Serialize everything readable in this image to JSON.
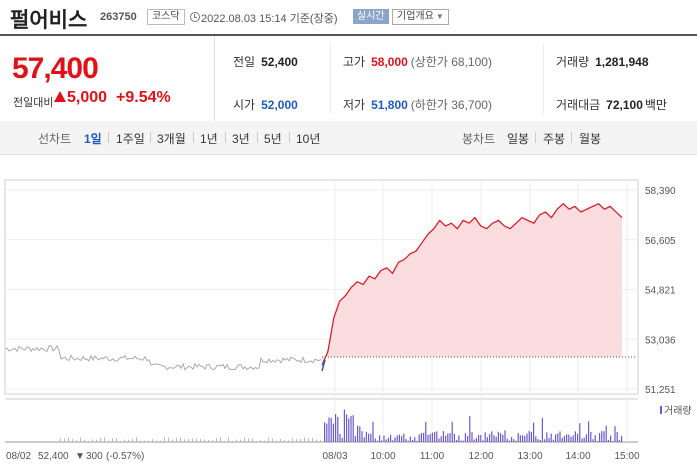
{
  "header": {
    "name": "펄어비스",
    "code": "263750",
    "market": "코스닥",
    "asof": "2022.08.03 15:14 기준(장중)",
    "realtime_label": "실시간",
    "info_label": "기업개요"
  },
  "quote": {
    "price": "57,400",
    "change_label": "전일대비",
    "change": "5,000",
    "change_pct": "+9.54%"
  },
  "stats": {
    "prev_label": "전일",
    "prev": "52,400",
    "high_label": "고가",
    "high": "58,000",
    "high_note": "(상한가 68,100)",
    "volume_label": "거래량",
    "volume": "1,281,948",
    "open_label": "시가",
    "open": "52,000",
    "low_label": "저가",
    "low": "51,800",
    "low_note": "(하한가 36,700)",
    "amount_label": "거래대금",
    "amount": "72,100",
    "amount_unit": "백만"
  },
  "tabs": {
    "line_label": "선차트",
    "line": [
      "1일",
      "1주일",
      "3개월",
      "1년",
      "3년",
      "5년",
      "10년"
    ],
    "candle_label": "봉차트",
    "candle": [
      "일봉",
      "주봉",
      "월봉"
    ]
  },
  "chart_data": {
    "type": "line",
    "y_ticks": [
      "58,390",
      "56,605",
      "54,821",
      "53,036",
      "51,251"
    ],
    "ylim": [
      51251,
      58390
    ],
    "x_ticks": [
      "08/03",
      "10:00",
      "11:00",
      "12:00",
      "13:00",
      "14:00",
      "15:00"
    ],
    "prev_day_label": "08/02",
    "prev_day_close": "52,400",
    "prev_day_change": "300",
    "prev_day_pct": "(-0.57%)",
    "volume_legend": "거래량",
    "series": [
      {
        "values": [
          52100,
          52600,
          53800,
          54400,
          54600,
          54900,
          55100,
          55000,
          55300,
          55200,
          55500,
          55600,
          55400,
          55800,
          55900,
          56100,
          56200,
          56500,
          56800,
          57000,
          57300,
          57100,
          57200,
          57000,
          57300,
          57200,
          57400,
          57100,
          57000,
          57200,
          57300,
          57100,
          57000,
          57200,
          57400,
          57300,
          57200,
          57500,
          57600,
          57400,
          57700,
          57900,
          57700,
          57800,
          57600,
          57700,
          57800,
          57900,
          57700,
          57800,
          57600,
          57400
        ]
      }
    ]
  }
}
